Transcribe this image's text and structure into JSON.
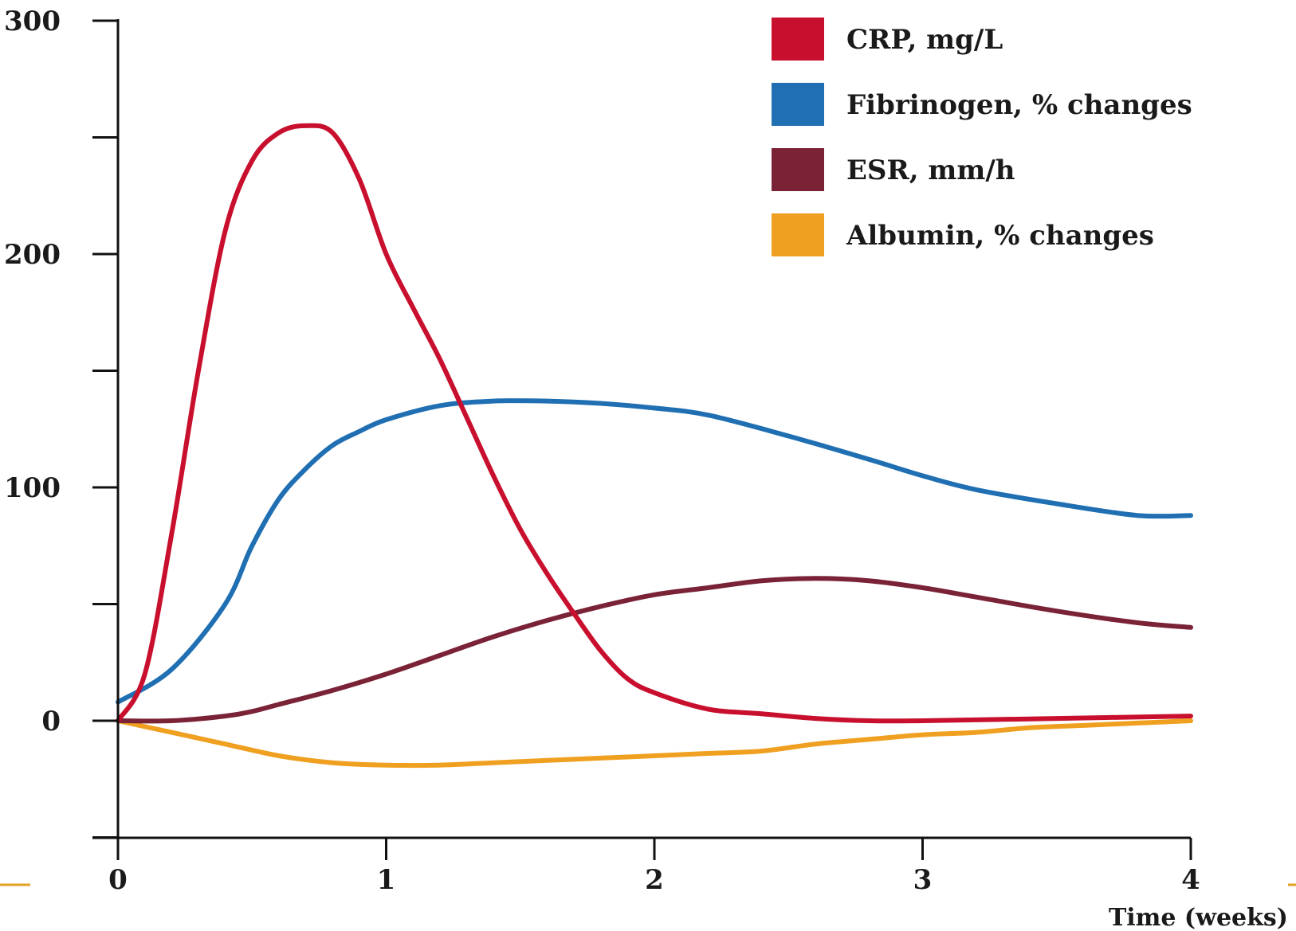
{
  "chart_data": {
    "type": "line",
    "title": "",
    "xlabel": "Time (weeks)",
    "ylabel": "",
    "xlim": [
      0,
      4
    ],
    "ylim": [
      -50,
      300
    ],
    "x_ticks": [
      "0",
      "1",
      "2",
      "3",
      "4"
    ],
    "y_ticks": [
      "0",
      "100",
      "200",
      "300"
    ],
    "y_minor_ticks": [
      50,
      150,
      250,
      -50
    ],
    "grid": false,
    "legend_position": "top-right",
    "series": [
      {
        "name": "CRP, mg/L",
        "color": "#c8102e",
        "x": [
          0,
          0.1,
          0.2,
          0.3,
          0.4,
          0.5,
          0.6,
          0.7,
          0.8,
          0.9,
          1.0,
          1.1,
          1.2,
          1.3,
          1.4,
          1.5,
          1.6,
          1.7,
          1.8,
          1.9,
          2.0,
          2.2,
          2.4,
          2.6,
          2.8,
          3.0,
          3.5,
          4.0
        ],
        "y": [
          0,
          20,
          80,
          150,
          210,
          240,
          252,
          255,
          252,
          232,
          200,
          177,
          155,
          130,
          105,
          82,
          63,
          46,
          30,
          18,
          12,
          5,
          3,
          1,
          0,
          0,
          1,
          2
        ]
      },
      {
        "name": "Fibrinogen, % changes",
        "color": "#1f6fb2",
        "x": [
          0,
          0.2,
          0.4,
          0.5,
          0.6,
          0.7,
          0.8,
          0.9,
          1.0,
          1.2,
          1.4,
          1.6,
          1.8,
          2.0,
          2.2,
          2.5,
          2.8,
          3.0,
          3.2,
          3.5,
          3.8,
          4.0
        ],
        "y": [
          8,
          22,
          50,
          75,
          95,
          108,
          118,
          124,
          129,
          135,
          137,
          137,
          136,
          134,
          131,
          122,
          112,
          105,
          99,
          93,
          88,
          88
        ]
      },
      {
        "name": "ESR, mm/h",
        "color": "#7a2236",
        "x": [
          0,
          0.2,
          0.4,
          0.5,
          0.6,
          0.8,
          1.0,
          1.2,
          1.4,
          1.6,
          1.8,
          2.0,
          2.2,
          2.4,
          2.6,
          2.8,
          3.0,
          3.2,
          3.5,
          3.8,
          4.0
        ],
        "y": [
          0,
          0,
          2,
          4,
          7,
          13,
          20,
          28,
          36,
          43,
          49,
          54,
          57,
          60,
          61,
          60,
          57,
          53,
          47,
          42,
          40
        ]
      },
      {
        "name": "Albumin, % changes",
        "color": "#f0a020",
        "x": [
          0,
          0.2,
          0.4,
          0.6,
          0.8,
          1.0,
          1.2,
          1.4,
          1.6,
          1.8,
          2.0,
          2.2,
          2.4,
          2.6,
          2.8,
          3.0,
          3.2,
          3.4,
          3.6,
          3.8,
          4.0
        ],
        "y": [
          0,
          -5,
          -10,
          -15,
          -18,
          -19,
          -19,
          -18,
          -17,
          -16,
          -15,
          -14,
          -13,
          -10,
          -8,
          -6,
          -5,
          -3,
          -2,
          -1,
          0
        ]
      }
    ]
  }
}
